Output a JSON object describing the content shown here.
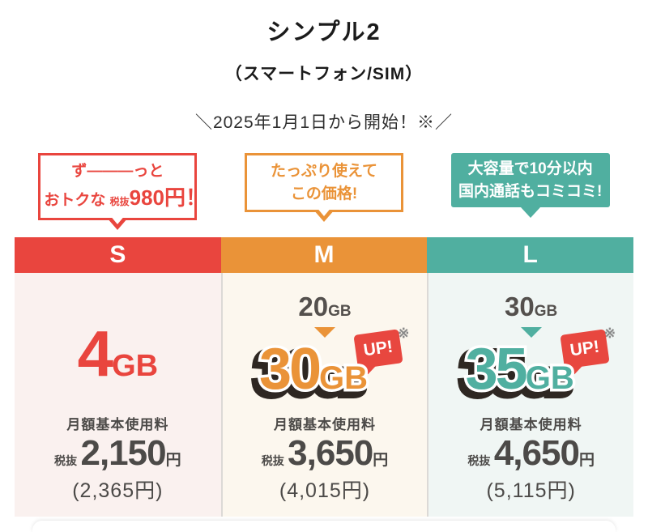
{
  "page": {
    "title": "シンプル2",
    "subtitle": "（スマートフォン/SIM）",
    "campaign": "＼2025年1月1日から開始！※／"
  },
  "colors": {
    "outline_dark": "#2e2722",
    "up_red": "#e8473f",
    "data_gray": "#54504d",
    "price_gray": "#4c4a48",
    "note_gray": "#8a8a8a"
  },
  "plans": [
    {
      "label": "S",
      "accent": "#e9453e",
      "bg": "#faf1ef",
      "bubble": {
        "line1": "ず―――っと",
        "line2_prefix": "おトクな",
        "line2_tax": "税抜",
        "line2_price": "980円！"
      },
      "data": {
        "amount": "4",
        "unit": "GB"
      },
      "price": {
        "label": "月額基本使用料",
        "tax_label": "税抜",
        "amount": "2,150",
        "unit": "円",
        "tax_included": "(2,365円)"
      }
    },
    {
      "label": "M",
      "accent": "#ea9338",
      "bg": "#fcf7ee",
      "bubble": {
        "line1": "たっぷり使えて",
        "line2": "この価格!"
      },
      "data": {
        "before_amount": "20",
        "before_unit": "GB",
        "after_amount": "30",
        "after_unit": "GB",
        "up_label": "UP!",
        "note_mark": "※"
      },
      "price": {
        "label": "月額基本使用料",
        "tax_label": "税抜",
        "amount": "3,650",
        "unit": "円",
        "tax_included": "(4,015円)"
      }
    },
    {
      "label": "L",
      "accent": "#50afa0",
      "bg": "#f0f6f4",
      "bubble": {
        "line1": "大容量で10分以内",
        "line2": "国内通話もコミコミ!"
      },
      "data": {
        "before_amount": "30",
        "before_unit": "GB",
        "after_amount": "35",
        "after_unit": "GB",
        "up_label": "UP!",
        "note_mark": "※"
      },
      "price": {
        "label": "月額基本使用料",
        "tax_label": "税抜",
        "amount": "4,650",
        "unit": "円",
        "tax_included": "(5,115円)"
      }
    }
  ]
}
